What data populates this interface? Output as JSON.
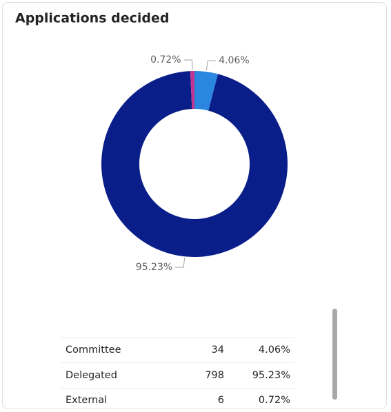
{
  "chart_data": {
    "type": "donut",
    "title": "Applications decided",
    "categories": [
      "Committee",
      "Delegated",
      "External"
    ],
    "values": [
      4.06,
      95.23,
      0.72
    ],
    "value_labels": [
      "4.06%",
      "95.23%",
      "0.72%"
    ],
    "counts": [
      34,
      798,
      6
    ],
    "colors": [
      "#2b86e0",
      "#0a1e8a",
      "#c2348f"
    ]
  }
}
